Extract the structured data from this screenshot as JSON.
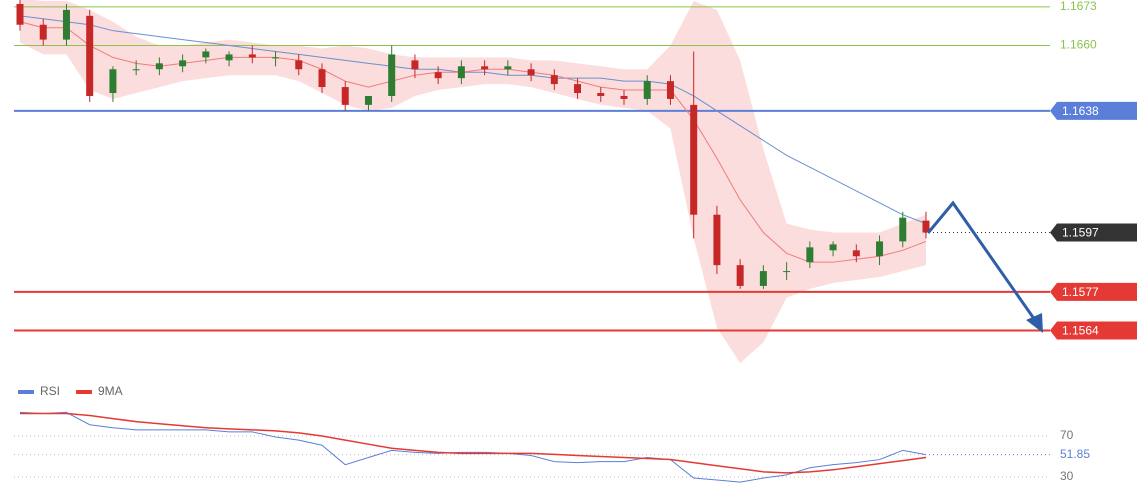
{
  "chart_data": [
    {
      "type": "candlestick",
      "open": [
        1.1674,
        1.1667,
        1.1662,
        1.167,
        1.1644,
        1.1652,
        1.1652,
        1.1653,
        1.1656,
        1.1655,
        1.1657,
        1.1656,
        1.1655,
        1.1652,
        1.1646,
        1.164,
        1.1643,
        1.1655,
        1.1651,
        1.1649,
        1.1653,
        1.1652,
        1.1652,
        1.165,
        1.1647,
        1.1644,
        1.1643,
        1.1642,
        1.1648,
        1.164,
        1.1603,
        1.1586,
        1.1579,
        1.1584,
        1.1587,
        1.1591,
        1.1591,
        1.1589,
        1.1594,
        1.1601
      ],
      "high": [
        1.1676,
        1.1669,
        1.1674,
        1.1672,
        1.1653,
        1.1655,
        1.1656,
        1.1657,
        1.1659,
        1.1658,
        1.166,
        1.1658,
        1.1657,
        1.1654,
        1.1648,
        1.1643,
        1.166,
        1.1657,
        1.1653,
        1.1655,
        1.1655,
        1.1655,
        1.1654,
        1.1652,
        1.1649,
        1.1646,
        1.1645,
        1.165,
        1.165,
        1.1658,
        1.1606,
        1.1588,
        1.1586,
        1.1587,
        1.1594,
        1.1594,
        1.1593,
        1.1596,
        1.1604,
        1.1604
      ],
      "low": [
        1.1665,
        1.166,
        1.166,
        1.1641,
        1.1641,
        1.165,
        1.165,
        1.1651,
        1.1654,
        1.1653,
        1.1654,
        1.1653,
        1.165,
        1.1644,
        1.1638,
        1.1638,
        1.1641,
        1.1649,
        1.1647,
        1.1647,
        1.165,
        1.165,
        1.1648,
        1.1645,
        1.1642,
        1.1641,
        1.164,
        1.164,
        1.164,
        1.1595,
        1.1583,
        1.1578,
        1.1578,
        1.1581,
        1.1585,
        1.1589,
        1.1587,
        1.1586,
        1.1592,
        1.1595
      ],
      "close": [
        1.1667,
        1.1662,
        1.1672,
        1.1643,
        1.1652,
        1.1652,
        1.1654,
        1.1655,
        1.1658,
        1.1657,
        1.1656,
        1.1656,
        1.1652,
        1.1646,
        1.164,
        1.1643,
        1.1657,
        1.1652,
        1.1649,
        1.1653,
        1.1652,
        1.1653,
        1.165,
        1.1647,
        1.1644,
        1.1643,
        1.1642,
        1.1648,
        1.1642,
        1.1603,
        1.1586,
        1.1579,
        1.1584,
        1.1584,
        1.1592,
        1.1593,
        1.1589,
        1.1594,
        1.1602,
        1.1597
      ],
      "ma_slow": [
        1.167,
        1.1669,
        1.1668,
        1.1667,
        1.1665,
        1.1664,
        1.1663,
        1.1662,
        1.1661,
        1.166,
        1.1659,
        1.1658,
        1.1657,
        1.1656,
        1.1655,
        1.1654,
        1.1653,
        1.1652,
        1.1652,
        1.1651,
        1.1651,
        1.165,
        1.165,
        1.1649,
        1.1649,
        1.1649,
        1.1648,
        1.1648,
        1.1647,
        1.1643,
        1.1638,
        1.1633,
        1.1628,
        1.1623,
        1.1619,
        1.1615,
        1.1611,
        1.1607,
        1.1603,
        1.16
      ],
      "ma_fast": [
        1.1668,
        1.1666,
        1.1666,
        1.166,
        1.1656,
        1.1654,
        1.1653,
        1.1654,
        1.1655,
        1.1656,
        1.1656,
        1.1656,
        1.1655,
        1.1652,
        1.1648,
        1.1646,
        1.1648,
        1.165,
        1.1651,
        1.1651,
        1.1652,
        1.1652,
        1.1651,
        1.165,
        1.1648,
        1.1646,
        1.1645,
        1.1645,
        1.1645,
        1.1635,
        1.1622,
        1.1608,
        1.1597,
        1.159,
        1.1587,
        1.1587,
        1.1588,
        1.1589,
        1.1591,
        1.1594
      ],
      "band_upper": [
        1.1676,
        1.1675,
        1.1675,
        1.1672,
        1.1668,
        1.1663,
        1.166,
        1.166,
        1.1661,
        1.1662,
        1.1661,
        1.166,
        1.166,
        1.1659,
        1.166,
        1.1659,
        1.1657,
        1.1656,
        1.1656,
        1.1656,
        1.1656,
        1.1656,
        1.1655,
        1.1655,
        1.1654,
        1.1653,
        1.1652,
        1.1652,
        1.166,
        1.1675,
        1.1672,
        1.1655,
        1.1625,
        1.16,
        1.1598,
        1.1597,
        1.1597,
        1.1597,
        1.16,
        1.1603
      ],
      "band_lower": [
        1.1661,
        1.1657,
        1.1657,
        1.1645,
        1.1642,
        1.1644,
        1.1646,
        1.1648,
        1.1649,
        1.165,
        1.165,
        1.165,
        1.1648,
        1.1644,
        1.164,
        1.1638,
        1.1639,
        1.1643,
        1.1645,
        1.1646,
        1.1647,
        1.1647,
        1.1646,
        1.1644,
        1.1642,
        1.164,
        1.1639,
        1.1638,
        1.1632,
        1.1595,
        1.1565,
        1.1553,
        1.156,
        1.1575,
        1.1578,
        1.158,
        1.1581,
        1.1582,
        1.1584,
        1.1586
      ],
      "up_color": "#2e7d32",
      "down_color": "#c62828",
      "ma_slow_color": "#6a8fd0",
      "ma_fast_color": "#ef7b7b",
      "band_color": "#fbd5d5",
      "ylim": [
        1.155,
        1.1675
      ],
      "levels": [
        {
          "value": 1.1673,
          "color": "#8bc34a",
          "style": "text"
        },
        {
          "value": 1.166,
          "label": "1.1660",
          "color": "#8bc34a",
          "style": "text"
        },
        {
          "value": 1.1638,
          "color": "#5b7fd8",
          "style": "box"
        },
        {
          "value": 1.1597,
          "color": "#333333",
          "style": "dotted-box"
        },
        {
          "value": 1.1577,
          "color": "#e53935",
          "style": "box"
        },
        {
          "value": 1.1564,
          "color": "#e53935",
          "style": "box"
        }
      ]
    },
    {
      "type": "line",
      "series": [
        {
          "name": "RSI",
          "color": "#5b7fd8",
          "values": [
            93,
            92,
            93,
            81,
            78,
            76,
            76,
            76,
            76,
            74,
            74,
            69,
            66,
            61,
            42,
            49,
            56,
            54,
            53,
            54,
            54,
            53,
            51,
            45,
            44,
            45,
            45,
            49,
            47,
            29,
            27,
            25,
            29,
            32,
            39,
            42,
            44,
            47,
            56,
            51.85
          ]
        },
        {
          "name": "9MA",
          "color": "#e53935",
          "values": [
            92,
            92,
            92,
            90,
            87,
            84,
            82,
            80,
            78,
            77,
            76,
            75,
            73,
            70,
            66,
            62,
            58,
            56,
            54,
            53,
            53,
            53,
            53,
            52,
            51,
            50,
            49,
            48,
            47,
            44,
            41,
            38,
            35,
            34,
            35,
            37,
            40,
            43,
            46,
            49
          ]
        }
      ],
      "ylim": [
        17,
        100
      ],
      "yticks": [
        70,
        30
      ],
      "last_value": 51.85
    }
  ]
}
